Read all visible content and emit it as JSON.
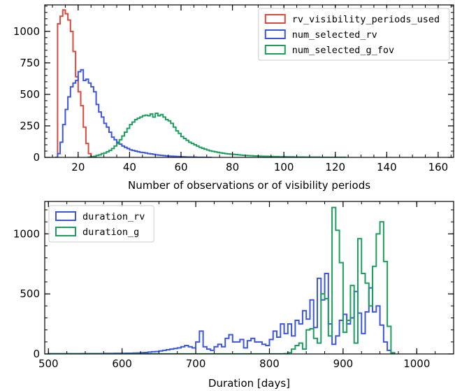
{
  "chart_data": [
    {
      "type": "histogram",
      "xlabel": "Number of observations or of visibility periods",
      "ylabel": "",
      "xlim": [
        7,
        166
      ],
      "ylim": [
        0,
        1210
      ],
      "xticks": [
        20,
        40,
        60,
        80,
        100,
        120,
        140,
        160
      ],
      "yticks": [
        0,
        250,
        500,
        750,
        1000
      ],
      "grid": false,
      "legend": "top-right",
      "series": [
        {
          "name": "rv_visibility_periods_used",
          "color": "#d94a3d",
          "bin_start": 11,
          "bin_width": 1,
          "values": [
            0,
            1060,
            1120,
            1170,
            1140,
            1090,
            1000,
            840,
            640,
            520,
            410,
            240,
            110,
            30,
            5
          ]
        },
        {
          "name": "num_selected_rv",
          "color": "#3b55e0",
          "bin_start": 12,
          "bin_width": 1,
          "values": [
            30,
            120,
            260,
            380,
            480,
            560,
            590,
            610,
            680,
            695,
            610,
            620,
            590,
            560,
            520,
            420,
            360,
            320,
            270,
            240,
            200,
            160,
            140,
            120,
            105,
            90,
            80,
            70,
            60,
            55,
            50,
            45,
            40,
            38,
            35,
            30,
            28,
            24,
            20,
            18,
            16,
            14,
            12,
            10,
            9,
            8,
            7,
            6,
            5,
            4,
            3,
            3,
            2,
            2,
            1,
            1,
            1,
            0,
            0,
            0
          ]
        },
        {
          "name": "num_selected_g_fov",
          "color": "#1c9e5c",
          "bin_start": 24,
          "bin_width": 1,
          "values": [
            2,
            5,
            8,
            15,
            20,
            30,
            35,
            45,
            55,
            70,
            90,
            110,
            140,
            170,
            200,
            230,
            260,
            280,
            300,
            310,
            320,
            330,
            335,
            330,
            345,
            320,
            350,
            330,
            340,
            320,
            300,
            290,
            270,
            240,
            210,
            190,
            165,
            150,
            135,
            120,
            110,
            100,
            90,
            80,
            72,
            65,
            58,
            52,
            48,
            44,
            40,
            36,
            33,
            30,
            28,
            26,
            24,
            22,
            20,
            18,
            16,
            15,
            14,
            13,
            12,
            11,
            10,
            9,
            8,
            8,
            7,
            7,
            6,
            6,
            5,
            5,
            5,
            4,
            4,
            4,
            3,
            3,
            3,
            3,
            2,
            2,
            2,
            2,
            2,
            2,
            1,
            1,
            1,
            1,
            1,
            1,
            1,
            1,
            1,
            1
          ]
        }
      ]
    },
    {
      "type": "histogram",
      "xlabel": "Duration [days]",
      "ylabel": "",
      "xlim": [
        495,
        1050
      ],
      "ylim": [
        0,
        1270
      ],
      "xticks": [
        500,
        600,
        700,
        800,
        900,
        1000
      ],
      "yticks": [
        0,
        500,
        1000
      ],
      "grid": false,
      "legend": "top-left",
      "series": [
        {
          "name": "duration_rv",
          "color": "#3b55e0",
          "bin_start": 500,
          "bin_width": 5,
          "values": [
            2,
            2,
            2,
            2,
            2,
            2,
            2,
            2,
            2,
            3,
            3,
            3,
            3,
            3,
            3,
            4,
            4,
            4,
            5,
            5,
            5,
            6,
            6,
            7,
            8,
            10,
            12,
            15,
            18,
            20,
            25,
            30,
            35,
            40,
            45,
            50,
            60,
            70,
            60,
            50,
            100,
            190,
            60,
            40,
            30,
            60,
            80,
            60,
            130,
            160,
            100,
            100,
            120,
            50,
            110,
            130,
            100,
            100,
            80,
            70,
            120,
            190,
            140,
            250,
            170,
            250,
            150,
            280,
            250,
            360,
            290,
            450,
            220,
            630,
            450,
            670,
            250,
            80,
            150,
            280,
            330,
            250,
            300,
            520,
            340,
            170,
            350,
            550,
            350,
            400,
            240,
            100,
            30,
            0
          ]
        },
        {
          "name": "duration_g",
          "color": "#1c9e5c",
          "bin_start": 500,
          "bin_width": 5,
          "values": [
            1,
            1,
            1,
            1,
            1,
            1,
            1,
            1,
            1,
            1,
            1,
            1,
            1,
            1,
            1,
            1,
            1,
            1,
            1,
            1,
            1,
            1,
            1,
            1,
            1,
            1,
            1,
            1,
            1,
            1,
            1,
            1,
            1,
            1,
            1,
            1,
            1,
            1,
            1,
            1,
            1,
            1,
            1,
            1,
            1,
            1,
            1,
            1,
            1,
            1,
            1,
            1,
            1,
            1,
            1,
            1,
            1,
            1,
            1,
            1,
            1,
            1,
            1,
            1,
            2,
            10,
            40,
            70,
            90,
            40,
            200,
            210,
            130,
            90,
            500,
            460,
            150,
            1220,
            1030,
            760,
            180,
            280,
            570,
            90,
            960,
            670,
            590,
            400,
            730,
            1000,
            1100,
            770,
            230,
            10
          ]
        }
      ]
    }
  ]
}
